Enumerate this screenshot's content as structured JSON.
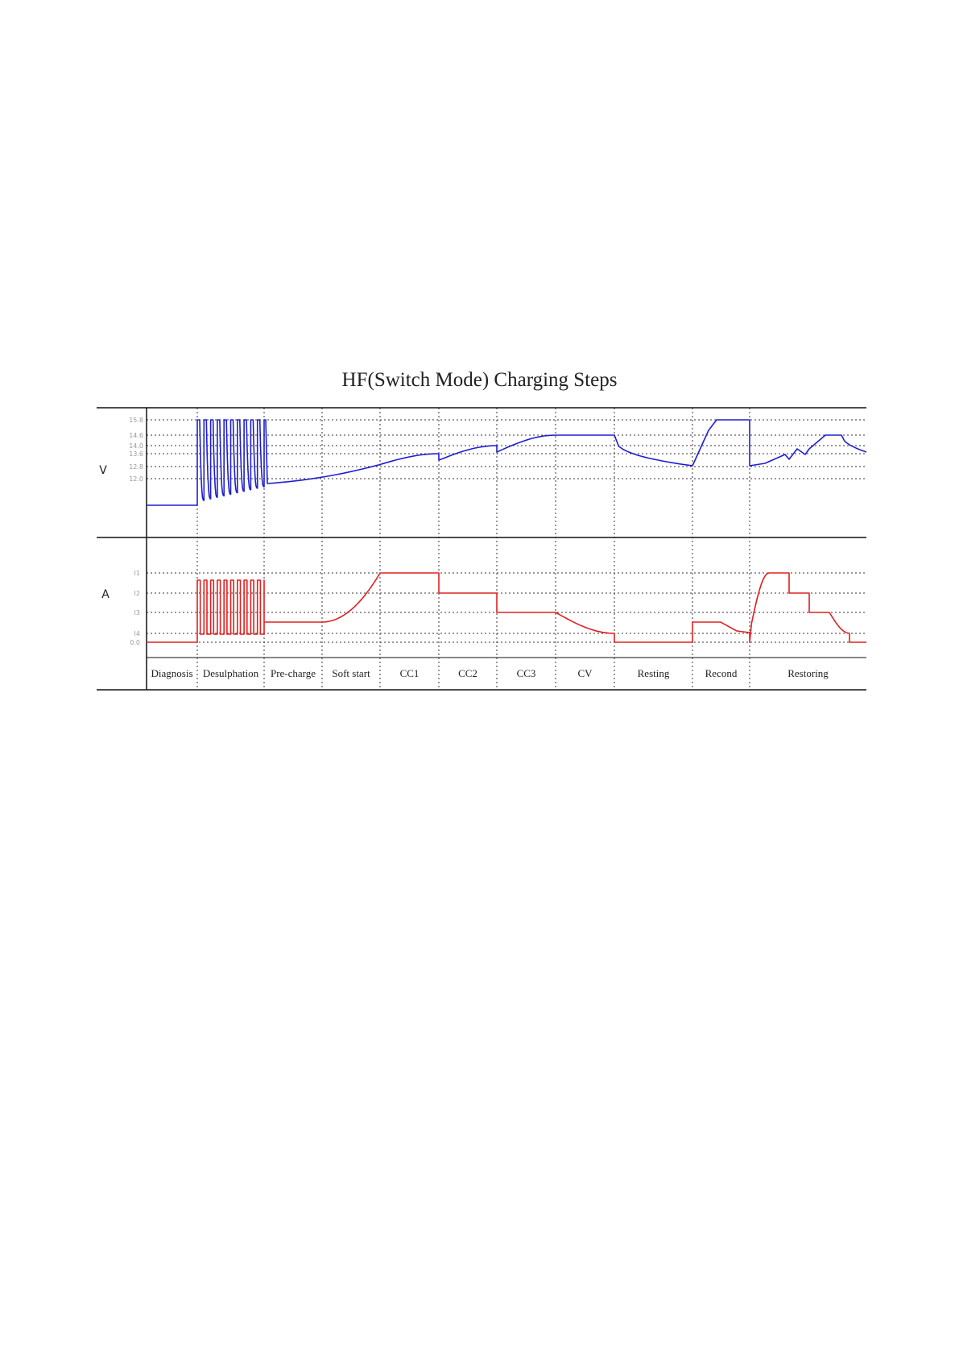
{
  "chart_data": {
    "type": "line",
    "title": "HF(Switch Mode) Charging Steps",
    "phases": [
      "Diagnosis",
      "Desulphation",
      "Pre-charge",
      "Soft start",
      "CC1",
      "CC2",
      "CC3",
      "CV",
      "Resting",
      "Recond",
      "Restoring"
    ],
    "voltage": {
      "axis_label": "V",
      "ticks": [
        "15.8",
        "14.6",
        "14.0",
        "13.6",
        "12.8",
        "12.0"
      ],
      "color": "#1f1fd0"
    },
    "current": {
      "axis_label": "A",
      "ticks": [
        "I1",
        "I2",
        "I3",
        "I4",
        "0.0"
      ],
      "color": "#e02020"
    },
    "grid": "dotted",
    "desulphation_pulses": 10
  }
}
